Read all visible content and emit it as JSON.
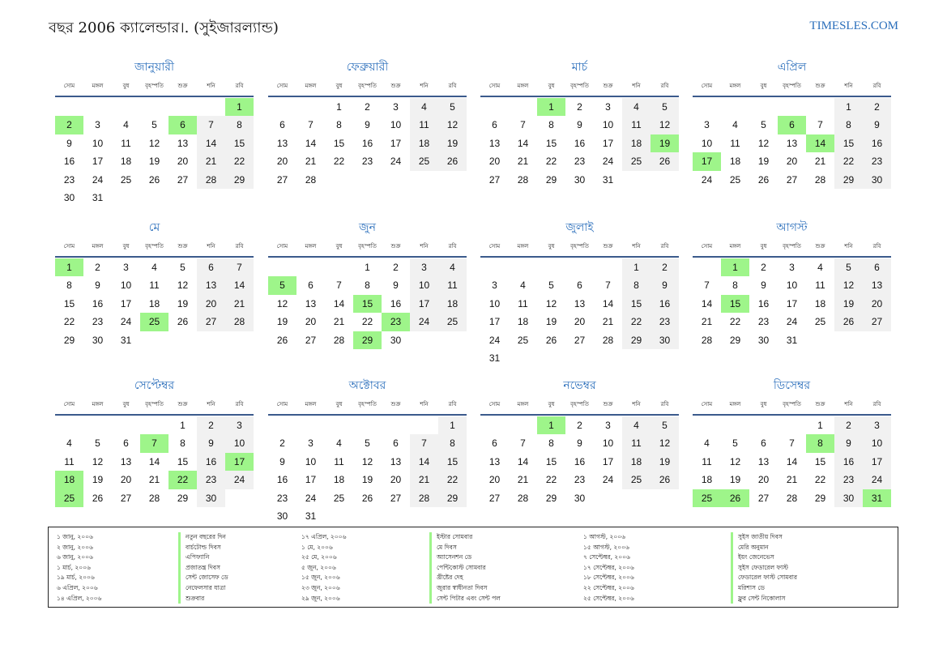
{
  "title": "বছর 2006 ক্যালেন্ডার।. (সুইজারল্যান্ড)",
  "brand": "TIMESLES.COM",
  "weekdays": [
    "সোম",
    "মঙ্গল",
    "বুধ",
    "বৃহস্পতি",
    "শুক্র",
    "শনি",
    "রবি"
  ],
  "months": [
    {
      "name": "জানুয়ারী",
      "offset": 6,
      "days": 31,
      "holidays": [
        1,
        2,
        6
      ]
    },
    {
      "name": "ফেব্রুয়ারী",
      "offset": 2,
      "days": 28,
      "holidays": []
    },
    {
      "name": "মার্চ",
      "offset": 2,
      "days": 31,
      "holidays": [
        1,
        19
      ]
    },
    {
      "name": "এপ্রিল",
      "offset": 5,
      "days": 30,
      "holidays": [
        6,
        14,
        17
      ]
    },
    {
      "name": "মে",
      "offset": 0,
      "days": 31,
      "holidays": [
        1,
        25
      ]
    },
    {
      "name": "জুন",
      "offset": 3,
      "days": 30,
      "holidays": [
        5,
        15,
        23,
        29
      ]
    },
    {
      "name": "জুলাই",
      "offset": 5,
      "days": 31,
      "holidays": []
    },
    {
      "name": "আগস্ট",
      "offset": 1,
      "days": 31,
      "holidays": [
        1,
        15
      ]
    },
    {
      "name": "সেপ্টেম্বর",
      "offset": 4,
      "days": 30,
      "holidays": [
        7,
        17,
        18,
        22,
        25
      ]
    },
    {
      "name": "অক্টোবর",
      "offset": 6,
      "days": 31,
      "holidays": []
    },
    {
      "name": "নভেম্বর",
      "offset": 2,
      "days": 30,
      "holidays": [
        1
      ]
    },
    {
      "name": "ডিসেম্বর",
      "offset": 4,
      "days": 31,
      "holidays": [
        8,
        25,
        26,
        31
      ]
    }
  ],
  "holiday_list": [
    {
      "date": "১ জানু, ২০০৬",
      "name": "নতুন বছরের দিন"
    },
    {
      "date": "২ জানু, ২০০৬",
      "name": "বার্চটোল্ড দিবস"
    },
    {
      "date": "৬ জানু, ২০০৬",
      "name": "এপিফ্যানি"
    },
    {
      "date": "১ মার্চ, ২০০৬",
      "name": "প্রজাতন্ত্র দিবস"
    },
    {
      "date": "১৯ মার্চ, ২০০৬",
      "name": "সেন্ট জোসেফ ডে"
    },
    {
      "date": "৬ এপ্রিল, ২০০৬",
      "name": "নেফেলসার যাত্রা"
    },
    {
      "date": "১৪ এপ্রিল, ২০০৬",
      "name": "শুক্রবার"
    },
    {
      "date": "১৭ এপ্রিল, ২০০৬",
      "name": "ইস্টার সোমবার"
    },
    {
      "date": "১ মে, ২০০৬",
      "name": "মে দিবস"
    },
    {
      "date": "২৫ মে, ২০০৬",
      "name": "অ্যাসেনশন ডে"
    },
    {
      "date": "৫ জুন, ২০০৬",
      "name": "পেন্টিকোস্ট সোমবার"
    },
    {
      "date": "১৫ জুন, ২০০৬",
      "name": "খ্রীষ্টের দেহ"
    },
    {
      "date": "২৩ জুন, ২০০৬",
      "name": "জুরার স্বাধীনতা দিবস"
    },
    {
      "date": "২৯ জুন, ২০০৬",
      "name": "সেন্ট পিটার এবং সেন্ট পল"
    },
    {
      "date": "১ আগস্ট, ২০০৬",
      "name": "সুইস জাতীয় দিবস"
    },
    {
      "date": "১৫ আগস্ট, ২০০৬",
      "name": "মেরি অনুমান"
    },
    {
      "date": "৭ সেপ্টেম্বর, ২০০৬",
      "name": "ইয়ং জেনেভেস"
    },
    {
      "date": "১৭ সেপ্টেম্বর, ২০০৬",
      "name": "সুইস ফেডারেল ফাস্ট"
    },
    {
      "date": "১৮ সেপ্টেম্বর, ২০০৬",
      "name": "ফেডারেল ফাস্ট সোমবার"
    },
    {
      "date": "২২ সেপ্টেম্বর, ২০০৬",
      "name": "মরিশাস ডে"
    },
    {
      "date": "২৫ সেপ্টেম্বর, ২০০৬",
      "name": "ফ্লুর সেন্ট নিকোলাস"
    }
  ],
  "colors": {
    "accent": "#2a6ebb",
    "holiday": "#9ef58a",
    "weekend": "#f1f1f1",
    "rule": "#3b5a8c"
  }
}
